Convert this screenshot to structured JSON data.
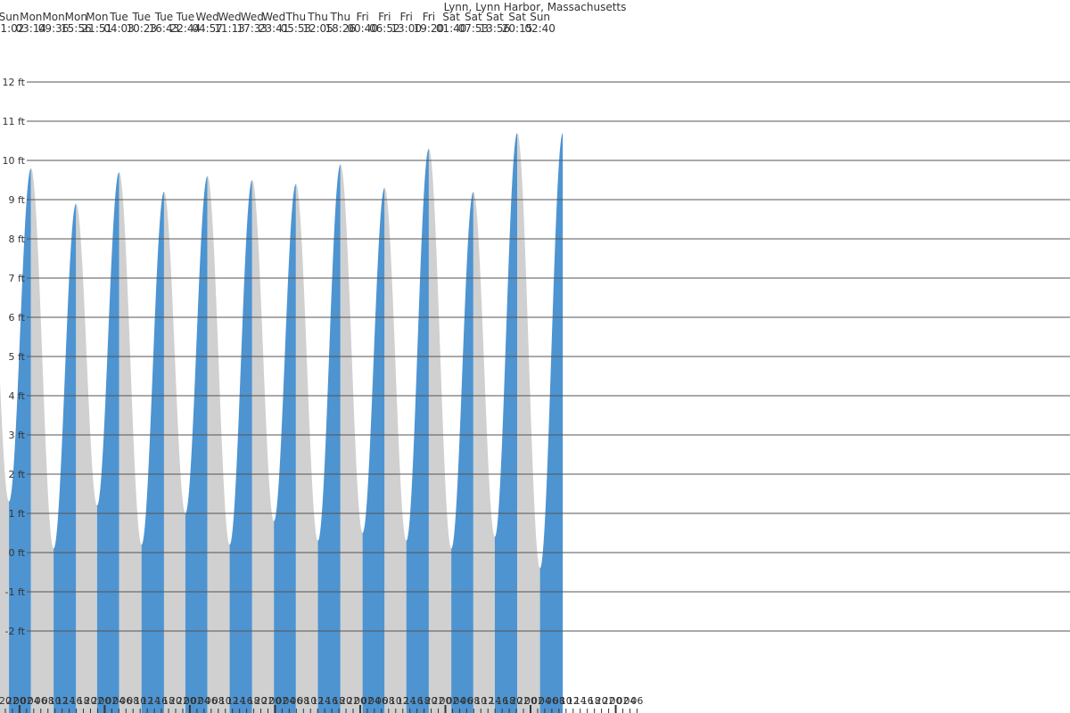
{
  "chart_data": {
    "type": "area",
    "title": "Lynn, Lynn Harbor, Massachusetts",
    "xlabel": "",
    "ylabel": "",
    "y_unit": "ft",
    "ylim": [
      -4,
      13
    ],
    "y_ticks": [
      12,
      11,
      10,
      9,
      8,
      7,
      6,
      5,
      4,
      3,
      2,
      1,
      0,
      -1,
      -2
    ],
    "y_tick_labels": [
      "12 ft",
      "11 ft",
      "10 ft",
      "9 ft",
      "8 ft",
      "7 ft",
      "6 ft",
      "5 ft",
      "4 ft",
      "3 ft",
      "2 ft",
      "1 ft",
      "0 ft",
      "-1 ft",
      "-2 ft"
    ],
    "grid": true,
    "colors": {
      "rising": "#4d94d1",
      "falling": "#d0d0d0",
      "grid": "#555555"
    },
    "tide_events": [
      {
        "day": "Sun",
        "time": "21:02",
        "height": 1.3
      },
      {
        "day": "Mon",
        "time": "03:14",
        "height": 9.8
      },
      {
        "day": "Mon",
        "time": "09:36",
        "height": 0.1
      },
      {
        "day": "Mon",
        "time": "15:56",
        "height": 8.9
      },
      {
        "day": "Mon",
        "time": "21:51",
        "height": 1.2
      },
      {
        "day": "Tue",
        "time": "04:03",
        "height": 9.7
      },
      {
        "day": "Tue",
        "time": "10:23",
        "height": 0.2
      },
      {
        "day": "Tue",
        "time": "16:43",
        "height": 9.2
      },
      {
        "day": "Tue",
        "time": "22:44",
        "height": 1.0
      },
      {
        "day": "Wed",
        "time": "04:57",
        "height": 9.6
      },
      {
        "day": "Wed",
        "time": "11:13",
        "height": 0.2
      },
      {
        "day": "Wed",
        "time": "17:33",
        "height": 9.5
      },
      {
        "day": "Wed",
        "time": "23:41",
        "height": 0.8
      },
      {
        "day": "Thu",
        "time": "05:53",
        "height": 9.4
      },
      {
        "day": "Thu",
        "time": "12:05",
        "height": 0.3
      },
      {
        "day": "Thu",
        "time": "18:26",
        "height": 9.9
      },
      {
        "day": "Fri",
        "time": "00:40",
        "height": 0.5
      },
      {
        "day": "Fri",
        "time": "06:52",
        "height": 9.3
      },
      {
        "day": "Fri",
        "time": "13:00",
        "height": 0.3
      },
      {
        "day": "Fri",
        "time": "19:20",
        "height": 10.3
      },
      {
        "day": "Sat",
        "time": "01:40",
        "height": 0.1
      },
      {
        "day": "Sat",
        "time": "07:53",
        "height": 9.2
      },
      {
        "day": "Sat",
        "time": "13:56",
        "height": 0.4
      },
      {
        "day": "Sat",
        "time": "20:15",
        "height": 10.7
      },
      {
        "day": "Sun",
        "time": "02:40",
        "height": -0.4
      }
    ],
    "hour_tick_labels": [
      "20",
      "22",
      "00",
      "02",
      "04",
      "06",
      "08",
      "10",
      "12",
      "14",
      "16",
      "18",
      "20",
      "22",
      "00",
      "02",
      "04",
      "06",
      "08",
      "10",
      "12",
      "14",
      "16",
      "18",
      "20",
      "22",
      "00",
      "02",
      "04",
      "06",
      "08",
      "10",
      "12",
      "14",
      "16",
      "18",
      "20",
      "22",
      "00",
      "02",
      "04",
      "06",
      "08",
      "10",
      "12",
      "14",
      "16",
      "18",
      "20",
      "22",
      "00",
      "02",
      "04",
      "06",
      "08",
      "10",
      "12",
      "14",
      "16",
      "18",
      "20",
      "22",
      "00",
      "02",
      "04",
      "06",
      "08",
      "10",
      "12",
      "14",
      "16",
      "18",
      "20",
      "22",
      "00",
      "02",
      "04",
      "06",
      "08",
      "10",
      "12",
      "14",
      "16",
      "18",
      "20",
      "22",
      "00",
      "02",
      "04",
      "06"
    ]
  }
}
